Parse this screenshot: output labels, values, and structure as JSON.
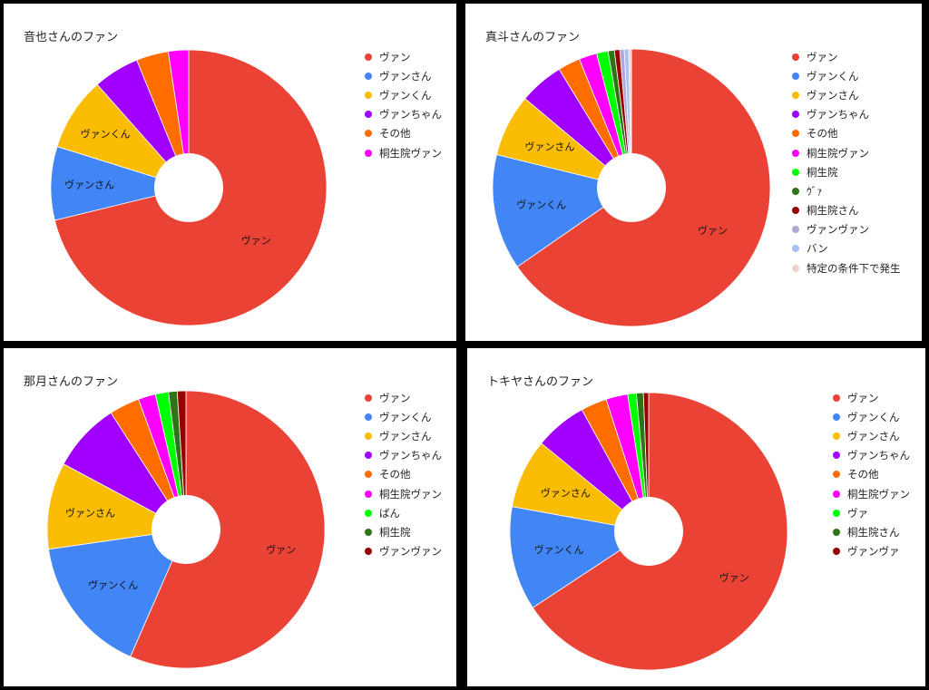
{
  "chart_data": [
    {
      "type": "pie",
      "title": "音也さんのファン",
      "categories": [
        "ヴァン",
        "ヴァンさん",
        "ヴァンくん",
        "ヴァンちゃん",
        "その他",
        "桐生院ヴァン"
      ],
      "values": [
        66,
        8,
        8,
        5,
        3.5,
        2.2
      ],
      "colors": [
        "#ea4335",
        "#4285f4",
        "#fbbc04",
        "#a100ff",
        "#ff6d01",
        "#ff00ff"
      ],
      "slice_labels": [
        "ヴァン",
        "ヴァンさん",
        "ヴァンくん",
        "",
        "",
        ""
      ],
      "donut": true
    },
    {
      "type": "pie",
      "title": "真斗さんのファン",
      "categories": [
        "ヴァン",
        "ヴァンくん",
        "ヴァンさん",
        "ヴァンちゃん",
        "その他",
        "桐生院ヴァン",
        "桐生院",
        "ｳﾞｧ",
        "桐生院さん",
        "ヴァンヴァン",
        "バン",
        "特定の条件下で発生"
      ],
      "values": [
        63,
        13,
        7,
        5,
        2.5,
        2,
        1.3,
        0.7,
        0.6,
        0.5,
        0.5,
        0.3
      ],
      "colors": [
        "#ea4335",
        "#4285f4",
        "#fbbc04",
        "#a100ff",
        "#ff6d01",
        "#ff00ff",
        "#00ff00",
        "#2d7514",
        "#990000",
        "#b4a7d6",
        "#a4c2f4",
        "#f4cccc"
      ],
      "slice_labels": [
        "ヴァン",
        "ヴァンくん",
        "ヴァンさん",
        "",
        "",
        "",
        "",
        "",
        "",
        "",
        "",
        ""
      ],
      "donut": true
    },
    {
      "type": "pie",
      "title": "那月さんのファン",
      "categories": [
        "ヴァン",
        "ヴァンくん",
        "ヴァンさん",
        "ヴァンちゃん",
        "その他",
        "桐生院ヴァン",
        "ばん",
        "桐生院",
        "ヴァンヴァン"
      ],
      "values": [
        56,
        16,
        10,
        8,
        3.5,
        2,
        1.5,
        1,
        1
      ],
      "colors": [
        "#ea4335",
        "#4285f4",
        "#fbbc04",
        "#a100ff",
        "#ff6d01",
        "#ff00ff",
        "#00ff00",
        "#2d7514",
        "#990000"
      ],
      "slice_labels": [
        "ヴァン",
        "ヴァンくん",
        "ヴァンさん",
        "",
        "",
        "",
        "",
        "",
        ""
      ],
      "donut": true
    },
    {
      "type": "pie",
      "title": "トキヤさんのファン",
      "categories": [
        "ヴァン",
        "ヴァンくん",
        "ヴァンさん",
        "ヴァンちゃん",
        "その他",
        "桐生院ヴァン",
        "ヴァ",
        "桐生院さん",
        "ヴァンヴァ"
      ],
      "values": [
        65,
        12,
        8,
        6,
        3,
        2.5,
        1,
        0.8,
        0.6
      ],
      "colors": [
        "#ea4335",
        "#4285f4",
        "#fbbc04",
        "#a100ff",
        "#ff6d01",
        "#ff00ff",
        "#00ff00",
        "#2d7514",
        "#990000"
      ],
      "slice_labels": [
        "ヴァン",
        "ヴァンくん",
        "ヴァンさん",
        "",
        "",
        "",
        "",
        "",
        ""
      ],
      "donut": true
    }
  ]
}
